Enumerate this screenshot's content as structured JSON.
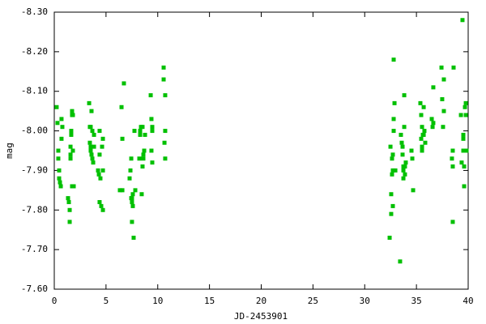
{
  "chart_data": {
    "type": "scatter",
    "xlabel": "JD-2453901",
    "ylabel": "mag",
    "color": "#00c000",
    "xlim": [
      0,
      40
    ],
    "xticks": [
      0,
      5,
      10,
      15,
      20,
      25,
      30,
      35,
      40
    ],
    "ylim": [
      -7.6,
      -8.3
    ],
    "yticks": [
      {
        "value": -7.6,
        "label": "-7.60"
      },
      {
        "value": -7.7,
        "label": "-7.70"
      },
      {
        "value": -7.8,
        "label": "-7.80"
      },
      {
        "value": -7.9,
        "label": "-7.90"
      },
      {
        "value": -8.0,
        "label": "-8.00"
      },
      {
        "value": -8.1,
        "label": "-8.10"
      },
      {
        "value": -8.2,
        "label": "-8.20"
      },
      {
        "value": -8.3,
        "label": "-8.30"
      }
    ],
    "x": [
      0.23,
      0.31,
      0.39,
      0.39,
      0.47,
      0.47,
      0.55,
      0.63,
      0.7,
      0.7,
      0.78,
      1.33,
      1.41,
      1.49,
      1.49,
      1.57,
      1.57,
      1.57,
      1.64,
      1.64,
      1.72,
      1.72,
      1.72,
      1.8,
      1.8,
      1.88,
      3.37,
      3.44,
      3.44,
      3.52,
      3.52,
      3.52,
      3.6,
      3.6,
      3.68,
      3.68,
      3.76,
      3.84,
      3.84,
      4.23,
      4.31,
      4.38,
      4.38,
      4.38,
      4.46,
      4.54,
      4.62,
      4.7,
      4.7,
      4.7,
      6.34,
      6.5,
      6.58,
      6.58,
      6.73,
      7.28,
      7.36,
      7.44,
      7.44,
      7.51,
      7.51,
      7.51,
      7.59,
      7.59,
      7.67,
      7.75,
      7.83,
      8.22,
      8.3,
      8.3,
      8.38,
      8.45,
      8.53,
      8.53,
      8.61,
      8.61,
      8.69,
      8.77,
      9.32,
      9.39,
      9.39,
      9.47,
      9.47,
      9.47,
      10.57,
      10.57,
      10.65,
      10.72,
      10.72,
      10.72,
      32.41,
      32.49,
      32.56,
      32.56,
      32.64,
      32.64,
      32.72,
      32.72,
      32.72,
      32.8,
      32.8,
      32.8,
      32.88,
      32.96,
      33.42,
      33.5,
      33.58,
      33.66,
      33.66,
      33.74,
      33.74,
      33.74,
      33.82,
      33.82,
      33.89,
      33.89,
      33.97,
      34.52,
      34.6,
      34.68,
      35.38,
      35.46,
      35.46,
      35.54,
      35.54,
      35.54,
      35.62,
      35.7,
      35.7,
      35.77,
      35.85,
      36.48,
      36.56,
      36.63,
      36.63,
      37.42,
      37.49,
      37.57,
      37.65,
      37.65,
      38.43,
      38.51,
      38.51,
      38.51,
      38.59,
      39.3,
      39.37,
      39.45,
      39.53,
      39.53,
      39.53,
      39.61,
      39.61,
      39.69,
      39.69,
      39.77,
      39.77,
      39.84
    ],
    "values": [
      -8.06,
      -8.02,
      -7.95,
      -7.93,
      -7.9,
      -7.88,
      -7.87,
      -7.86,
      -8.03,
      -7.98,
      -8.01,
      -7.83,
      -7.82,
      -7.77,
      -7.8,
      -7.96,
      -7.94,
      -7.93,
      -8.0,
      -7.99,
      -8.05,
      -8.04,
      -7.86,
      -8.04,
      -7.95,
      -7.86,
      -8.07,
      -8.01,
      -7.97,
      -8.01,
      -7.96,
      -7.95,
      -8.05,
      -7.94,
      -8.0,
      -7.93,
      -7.92,
      -7.99,
      -7.96,
      -7.9,
      -7.89,
      -8.0,
      -7.94,
      -7.82,
      -7.88,
      -7.81,
      -7.96,
      -7.8,
      -7.9,
      -7.98,
      -7.85,
      -8.06,
      -7.98,
      -7.85,
      -8.12,
      -7.88,
      -7.9,
      -7.93,
      -7.83,
      -7.83,
      -7.82,
      -7.77,
      -7.81,
      -7.84,
      -7.73,
      -8.0,
      -7.85,
      -7.93,
      -8.0,
      -7.99,
      -8.01,
      -7.84,
      -8.01,
      -7.91,
      -7.93,
      -7.94,
      -7.95,
      -7.99,
      -8.09,
      -8.03,
      -7.95,
      -7.92,
      -8.01,
      -8.0,
      -8.16,
      -8.13,
      -7.97,
      -8.09,
      -8.0,
      -7.93,
      -7.73,
      -7.96,
      -7.84,
      -7.79,
      -7.93,
      -7.89,
      -7.94,
      -7.9,
      -7.81,
      -8.03,
      -8.0,
      -8.18,
      -8.07,
      -7.9,
      -7.67,
      -7.99,
      -7.97,
      -7.96,
      -7.94,
      -7.88,
      -7.91,
      -7.9,
      -8.09,
      -8.01,
      -7.89,
      -7.91,
      -7.92,
      -7.95,
      -7.93,
      -7.85,
      -8.07,
      -8.04,
      -7.98,
      -8.01,
      -7.96,
      -7.95,
      -7.99,
      -8.06,
      -7.99,
      -8.0,
      -7.97,
      -8.03,
      -8.01,
      -8.11,
      -8.02,
      -8.16,
      -8.08,
      -8.01,
      -8.13,
      -8.05,
      -7.93,
      -7.95,
      -7.91,
      -7.77,
      -8.16,
      -8.04,
      -7.92,
      -8.28,
      -7.95,
      -7.98,
      -7.99,
      -7.91,
      -7.86,
      -7.95,
      -8.06,
      -8.07,
      -8.04,
      -7.95
    ]
  }
}
